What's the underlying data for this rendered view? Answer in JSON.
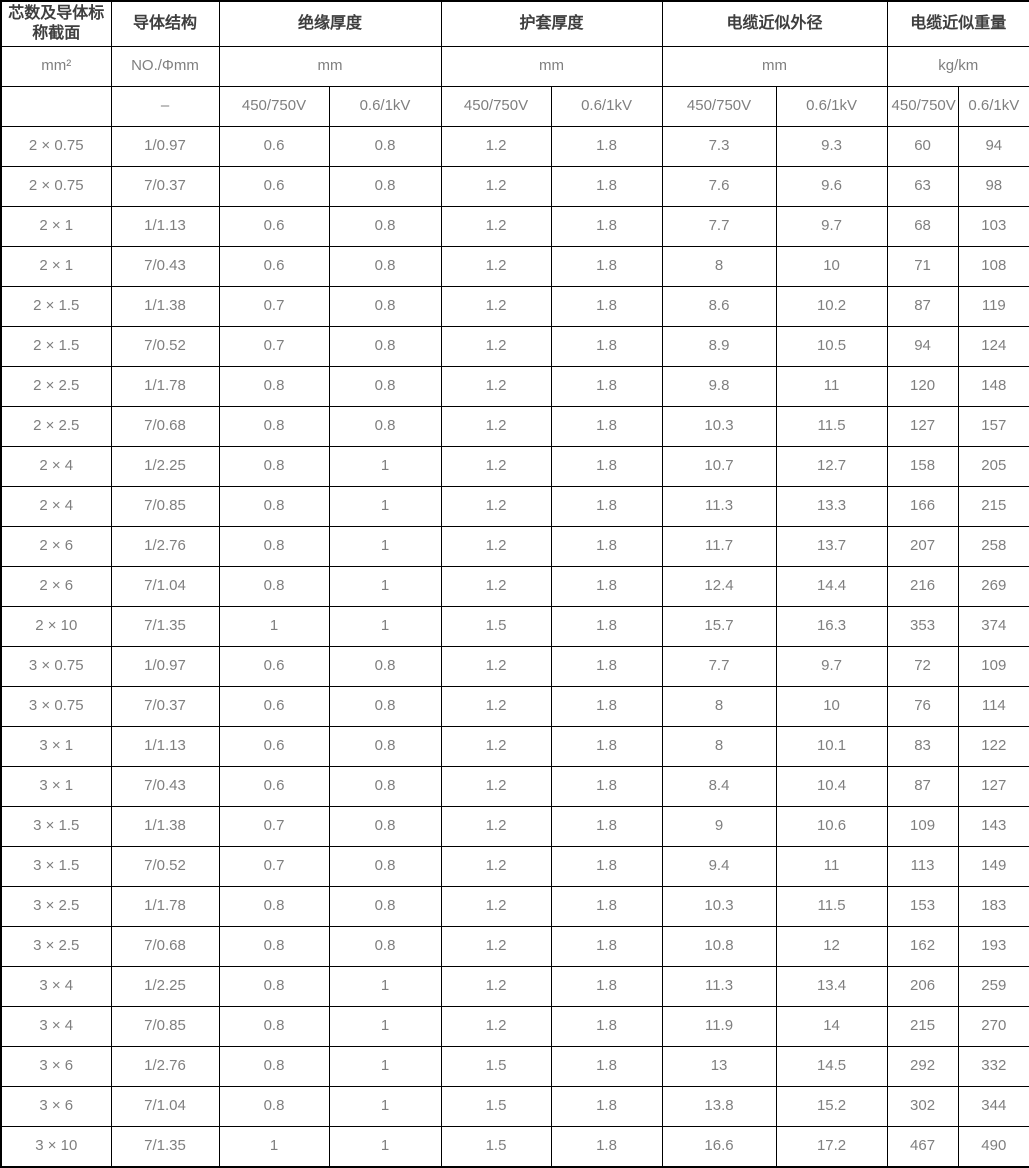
{
  "colors": {
    "background": "#ffffff",
    "grid_border": "#000000",
    "group_header_text": "#3f3f3f",
    "body_text": "#7f7f7f"
  },
  "table": {
    "group_headers": {
      "cores_section": "芯数及导体标称截面",
      "conductor_structure": "导体结构",
      "insulation_thickness": "绝缘厚度",
      "sheath_thickness": "护套厚度",
      "cable_outer_diameter": "电缆近似外径",
      "cable_weight": "电缆近似重量"
    },
    "unit_headers": {
      "cores_section": "mm²",
      "conductor_structure": "NO./Φmm",
      "insulation_thickness": "mm",
      "sheath_thickness": "mm",
      "cable_outer_diameter": "mm",
      "cable_weight": "kg/km"
    },
    "voltage_headers": {
      "cores_section": "",
      "conductor_structure": "–",
      "v1": "450/750V",
      "v2": "0.6/1kV",
      "v3": "450/750V",
      "v4": "0.6/1kV",
      "v5": "450/750V",
      "v6": "0.6/1kV",
      "v7": "450/750V",
      "v8": "0.6/1kV"
    },
    "rows": [
      [
        "2 × 0.75",
        "1/0.97",
        "0.6",
        "0.8",
        "1.2",
        "1.8",
        "7.3",
        "9.3",
        "60",
        "94"
      ],
      [
        "2 × 0.75",
        "7/0.37",
        "0.6",
        "0.8",
        "1.2",
        "1.8",
        "7.6",
        "9.6",
        "63",
        "98"
      ],
      [
        "2 × 1",
        "1/1.13",
        "0.6",
        "0.8",
        "1.2",
        "1.8",
        "7.7",
        "9.7",
        "68",
        "103"
      ],
      [
        "2 × 1",
        "7/0.43",
        "0.6",
        "0.8",
        "1.2",
        "1.8",
        "8",
        "10",
        "71",
        "108"
      ],
      [
        "2 × 1.5",
        "1/1.38",
        "0.7",
        "0.8",
        "1.2",
        "1.8",
        "8.6",
        "10.2",
        "87",
        "119"
      ],
      [
        "2 × 1.5",
        "7/0.52",
        "0.7",
        "0.8",
        "1.2",
        "1.8",
        "8.9",
        "10.5",
        "94",
        "124"
      ],
      [
        "2 × 2.5",
        "1/1.78",
        "0.8",
        "0.8",
        "1.2",
        "1.8",
        "9.8",
        "11",
        "120",
        "148"
      ],
      [
        "2 × 2.5",
        "7/0.68",
        "0.8",
        "0.8",
        "1.2",
        "1.8",
        "10.3",
        "11.5",
        "127",
        "157"
      ],
      [
        "2 × 4",
        "1/2.25",
        "0.8",
        "1",
        "1.2",
        "1.8",
        "10.7",
        "12.7",
        "158",
        "205"
      ],
      [
        "2 × 4",
        "7/0.85",
        "0.8",
        "1",
        "1.2",
        "1.8",
        "11.3",
        "13.3",
        "166",
        "215"
      ],
      [
        "2 × 6",
        "1/2.76",
        "0.8",
        "1",
        "1.2",
        "1.8",
        "11.7",
        "13.7",
        "207",
        "258"
      ],
      [
        "2 × 6",
        "7/1.04",
        "0.8",
        "1",
        "1.2",
        "1.8",
        "12.4",
        "14.4",
        "216",
        "269"
      ],
      [
        "2 × 10",
        "7/1.35",
        "1",
        "1",
        "1.5",
        "1.8",
        "15.7",
        "16.3",
        "353",
        "374"
      ],
      [
        "3 × 0.75",
        "1/0.97",
        "0.6",
        "0.8",
        "1.2",
        "1.8",
        "7.7",
        "9.7",
        "72",
        "109"
      ],
      [
        "3 × 0.75",
        "7/0.37",
        "0.6",
        "0.8",
        "1.2",
        "1.8",
        "8",
        "10",
        "76",
        "114"
      ],
      [
        "3 × 1",
        "1/1.13",
        "0.6",
        "0.8",
        "1.2",
        "1.8",
        "8",
        "10.1",
        "83",
        "122"
      ],
      [
        "3 × 1",
        "7/0.43",
        "0.6",
        "0.8",
        "1.2",
        "1.8",
        "8.4",
        "10.4",
        "87",
        "127"
      ],
      [
        "3 × 1.5",
        "1/1.38",
        "0.7",
        "0.8",
        "1.2",
        "1.8",
        "9",
        "10.6",
        "109",
        "143"
      ],
      [
        "3 × 1.5",
        "7/0.52",
        "0.7",
        "0.8",
        "1.2",
        "1.8",
        "9.4",
        "11",
        "113",
        "149"
      ],
      [
        "3 × 2.5",
        "1/1.78",
        "0.8",
        "0.8",
        "1.2",
        "1.8",
        "10.3",
        "11.5",
        "153",
        "183"
      ],
      [
        "3 × 2.5",
        "7/0.68",
        "0.8",
        "0.8",
        "1.2",
        "1.8",
        "10.8",
        "12",
        "162",
        "193"
      ],
      [
        "3 × 4",
        "1/2.25",
        "0.8",
        "1",
        "1.2",
        "1.8",
        "11.3",
        "13.4",
        "206",
        "259"
      ],
      [
        "3 × 4",
        "7/0.85",
        "0.8",
        "1",
        "1.2",
        "1.8",
        "11.9",
        "14",
        "215",
        "270"
      ],
      [
        "3 × 6",
        "1/2.76",
        "0.8",
        "1",
        "1.5",
        "1.8",
        "13",
        "14.5",
        "292",
        "332"
      ],
      [
        "3 × 6",
        "7/1.04",
        "0.8",
        "1",
        "1.5",
        "1.8",
        "13.8",
        "15.2",
        "302",
        "344"
      ],
      [
        "3 × 10",
        "7/1.35",
        "1",
        "1",
        "1.5",
        "1.8",
        "16.6",
        "17.2",
        "467",
        "490"
      ]
    ]
  }
}
